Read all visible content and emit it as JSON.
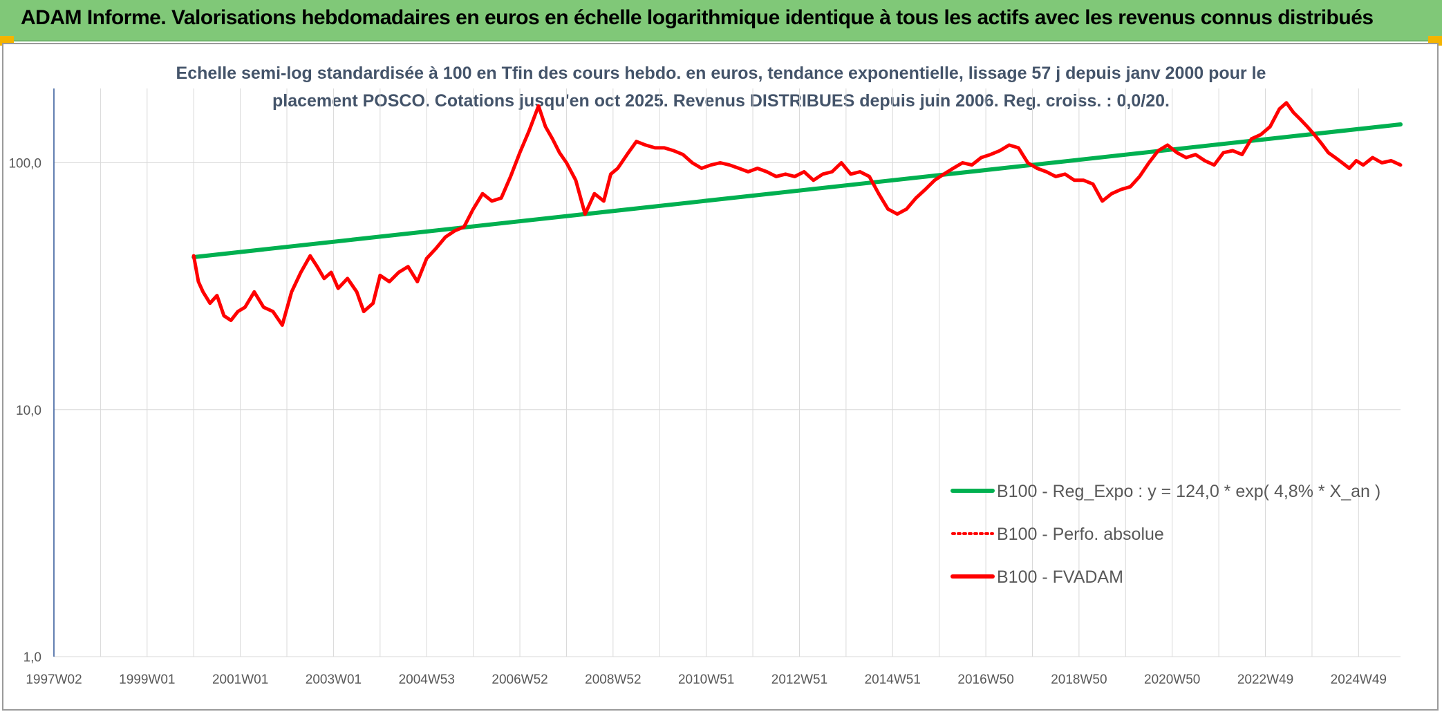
{
  "header": {
    "title": "ADAM Informe. Valorisations hebdomadaires en euros en échelle logarithmique identique à tous les actifs avec les revenus connus distribués",
    "bg_color": "#80c878"
  },
  "chart_data": {
    "type": "line",
    "title": "Echelle semi-log standardisée à 100 en Tfin des cours hebdo. en euros, tendance exponentielle, lissage 57 j depuis janv 2000 pour le\nplacement POSCO. Cotations jusqu'en oct 2025. Revenus DISTRIBUES depuis juin 2006. Reg. croiss. : 0,0/20.",
    "xlabel": "",
    "ylabel": "",
    "y_scale": "log",
    "ylim": [
      1,
      200
    ],
    "xlim": [
      1997.0,
      2025.9
    ],
    "y_ticks": [
      "1,0",
      "10,0",
      "100,0"
    ],
    "x_ticks": [
      "1997W02",
      "1999W01",
      "2001W01",
      "2003W01",
      "2004W53",
      "2006W52",
      "2008W52",
      "2010W51",
      "2012W51",
      "2014W51",
      "2016W50",
      "2018W50",
      "2020W50",
      "2022W49",
      "2024W49"
    ],
    "grid": true,
    "legend_position": "bottom-right",
    "series": [
      {
        "name": "B100 - Reg_Expo : y = 124,0 * exp( 4,8% *  X_an )",
        "color": "#00b050",
        "style": "solid",
        "x": [
          2000.0,
          2025.9
        ],
        "y": [
          41.5,
          143
        ]
      },
      {
        "name": "B100 - Perfo. absolue",
        "color": "#ff0000",
        "style": "dotted",
        "x": [],
        "y": []
      },
      {
        "name": "B100 - FVADAM",
        "color": "#ff0000",
        "style": "solid",
        "x": [
          2000.0,
          2000.1,
          2000.2,
          2000.35,
          2000.5,
          2000.65,
          2000.8,
          2000.95,
          2001.1,
          2001.3,
          2001.5,
          2001.7,
          2001.9,
          2002.1,
          2002.3,
          2002.5,
          2002.65,
          2002.8,
          2002.95,
          2003.1,
          2003.3,
          2003.5,
          2003.65,
          2003.85,
          2004.0,
          2004.2,
          2004.4,
          2004.6,
          2004.8,
          2005.0,
          2005.2,
          2005.4,
          2005.6,
          2005.8,
          2006.0,
          2006.2,
          2006.4,
          2006.6,
          2006.8,
          2007.0,
          2007.2,
          2007.4,
          2007.55,
          2007.7,
          2007.85,
          2008.0,
          2008.2,
          2008.4,
          2008.6,
          2008.8,
          2008.95,
          2009.1,
          2009.3,
          2009.5,
          2009.7,
          2009.9,
          2010.1,
          2010.3,
          2010.5,
          2010.7,
          2010.9,
          2011.1,
          2011.3,
          2011.5,
          2011.7,
          2011.9,
          2012.1,
          2012.3,
          2012.5,
          2012.7,
          2012.9,
          2013.1,
          2013.3,
          2013.5,
          2013.7,
          2013.9,
          2014.1,
          2014.3,
          2014.5,
          2014.7,
          2014.9,
          2015.1,
          2015.3,
          2015.5,
          2015.7,
          2015.9,
          2016.1,
          2016.3,
          2016.5,
          2016.7,
          2016.9,
          2017.1,
          2017.3,
          2017.5,
          2017.7,
          2017.9,
          2018.1,
          2018.3,
          2018.5,
          2018.7,
          2018.9,
          2019.1,
          2019.3,
          2019.5,
          2019.7,
          2019.9,
          2020.1,
          2020.3,
          2020.5,
          2020.7,
          2020.9,
          2021.1,
          2021.3,
          2021.5,
          2021.7,
          2021.9,
          2022.1,
          2022.3,
          2022.5,
          2022.7,
          2022.9,
          2023.1,
          2023.3,
          2023.45,
          2023.6,
          2023.75,
          2023.9,
          2024.05,
          2024.2,
          2024.35,
          2024.5,
          2024.65,
          2024.8,
          2024.95,
          2025.1,
          2025.3,
          2025.5,
          2025.7,
          2025.9
        ],
        "y": [
          42,
          33,
          30,
          27,
          29,
          24,
          23,
          25,
          26,
          30,
          26,
          25,
          22,
          30,
          36,
          42,
          38,
          34,
          36,
          31,
          34,
          30,
          25,
          27,
          35,
          33,
          36,
          38,
          33,
          41,
          45,
          50,
          53,
          55,
          65,
          75,
          70,
          72,
          88,
          110,
          135,
          170,
          140,
          125,
          110,
          100,
          85,
          62,
          75,
          70,
          90,
          95,
          108,
          122,
          118,
          115,
          115,
          112,
          108,
          100,
          95,
          98,
          100,
          98,
          95,
          92,
          95,
          92,
          88,
          90,
          88,
          92,
          85,
          90,
          92,
          100,
          90,
          92,
          88,
          75,
          65,
          62,
          65,
          72,
          78,
          85,
          90,
          95,
          100,
          98,
          105,
          108,
          112,
          118,
          115,
          100,
          95,
          92,
          88,
          90,
          85,
          85,
          82,
          70,
          75,
          78,
          80,
          88,
          100,
          112,
          118,
          110,
          105,
          108,
          102,
          98,
          110,
          112,
          108,
          125,
          130,
          140,
          165,
          175,
          160,
          150,
          140,
          130,
          120,
          110,
          105,
          100,
          95,
          102,
          98,
          105,
          100,
          102,
          98
        ]
      }
    ]
  }
}
